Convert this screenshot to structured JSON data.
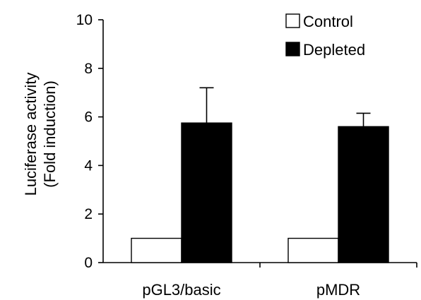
{
  "chart_data": {
    "type": "bar",
    "categories": [
      "pGL3/basic",
      "pMDR"
    ],
    "series": [
      {
        "name": "Control",
        "color": "#ffffff",
        "values": [
          1.0,
          1.0
        ],
        "errors": [
          null,
          null
        ]
      },
      {
        "name": "Depleted",
        "color": "#000000",
        "values": [
          5.75,
          5.6
        ],
        "errors": [
          1.45,
          0.55
        ]
      }
    ],
    "ylabel_lines": [
      "Luciferase activity",
      "(Fold induction)"
    ],
    "ylim": [
      0,
      10
    ],
    "yticks": [
      0,
      2,
      4,
      6,
      8,
      10
    ],
    "grid": false,
    "legend_position": "top-right",
    "error_bars": "upper only"
  }
}
